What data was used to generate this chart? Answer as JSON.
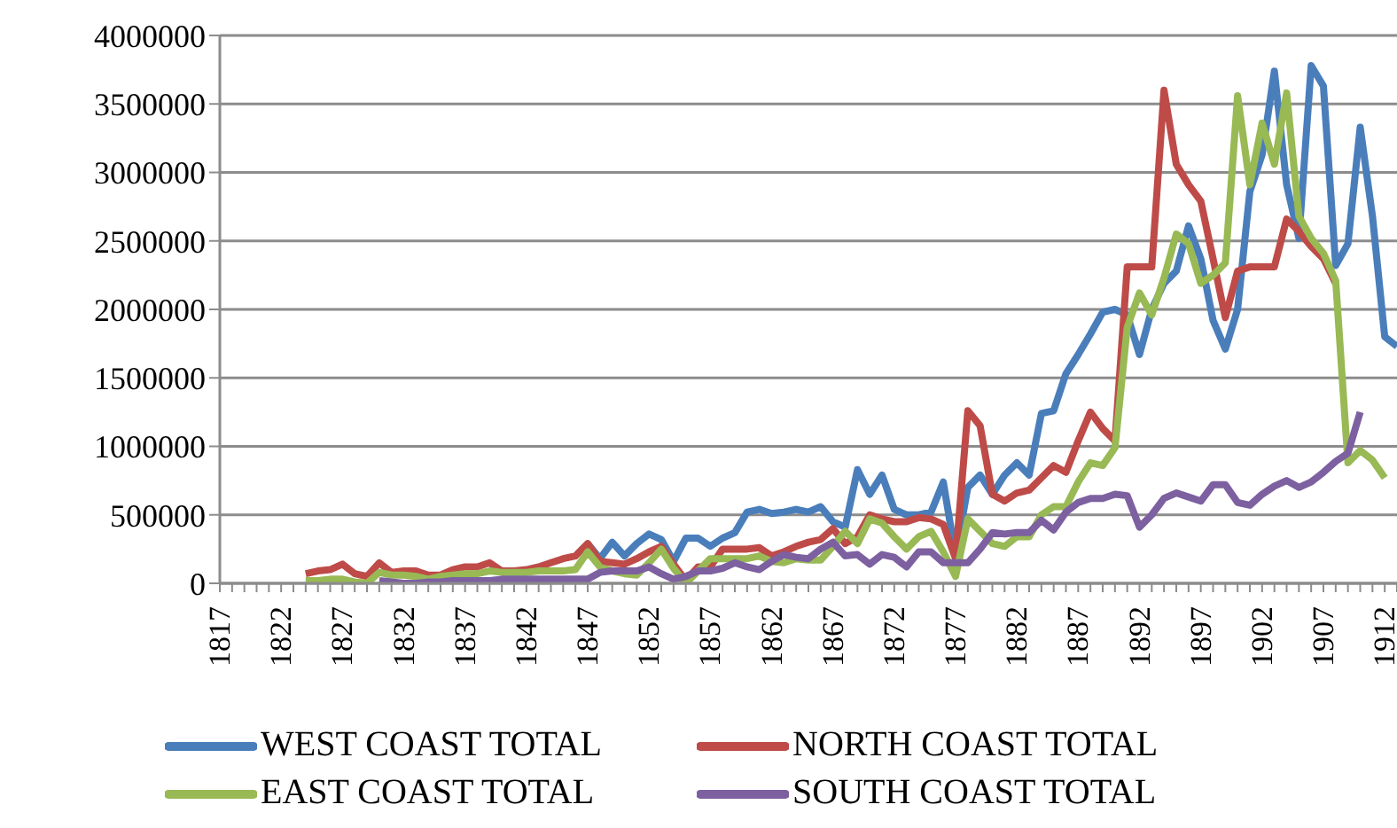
{
  "chart_data": {
    "type": "line",
    "categories": [
      "1817",
      null,
      null,
      null,
      null,
      "1822",
      null,
      null,
      null,
      null,
      "1827",
      null,
      null,
      null,
      null,
      "1832",
      null,
      null,
      null,
      null,
      "1837",
      null,
      null,
      null,
      null,
      "1842",
      null,
      null,
      null,
      null,
      "1847",
      null,
      null,
      null,
      null,
      "1852",
      null,
      null,
      null,
      null,
      "1857",
      null,
      null,
      null,
      null,
      "1862",
      null,
      null,
      null,
      null,
      "1867",
      null,
      null,
      null,
      null,
      "1872",
      null,
      null,
      null,
      null,
      "1877",
      null,
      null,
      null,
      null,
      "1882",
      null,
      null,
      null,
      null,
      "1887",
      null,
      null,
      null,
      null,
      "1892",
      null,
      null,
      null,
      null,
      "1897",
      null,
      null,
      null,
      null,
      "1902",
      null,
      null,
      null,
      null,
      "1907",
      null,
      null,
      null,
      null,
      "1912",
      null
    ],
    "series": [
      {
        "name": "WEST COAST TOTAL",
        "color": "#4a7ebb",
        "values": [
          null,
          null,
          null,
          null,
          null,
          null,
          null,
          null,
          null,
          null,
          null,
          null,
          null,
          null,
          null,
          null,
          null,
          null,
          null,
          null,
          null,
          null,
          null,
          null,
          null,
          null,
          null,
          null,
          null,
          null,
          290000,
          180000,
          300000,
          200000,
          290000,
          360000,
          320000,
          160000,
          330000,
          330000,
          270000,
          330000,
          370000,
          520000,
          540000,
          510000,
          520000,
          540000,
          520000,
          560000,
          450000,
          410000,
          830000,
          650000,
          790000,
          540000,
          500000,
          500000,
          520000,
          740000,
          200000,
          700000,
          790000,
          650000,
          790000,
          880000,
          790000,
          1240000,
          1260000,
          1530000,
          1670000,
          1820000,
          1980000,
          2000000,
          1960000,
          1670000,
          2000000,
          2190000,
          2280000,
          2610000,
          2370000,
          1920000,
          1710000,
          2000000,
          2860000,
          3130000,
          3740000,
          2910000,
          2520000,
          3780000,
          3630000,
          2320000,
          2480000,
          3330000,
          2680000,
          1800000,
          1730000
        ]
      },
      {
        "name": "NORTH COAST TOTAL",
        "color": "#be4b48",
        "values": [
          null,
          null,
          null,
          null,
          null,
          null,
          null,
          70000,
          90000,
          100000,
          140000,
          70000,
          50000,
          150000,
          80000,
          90000,
          90000,
          60000,
          60000,
          100000,
          120000,
          120000,
          150000,
          90000,
          90000,
          100000,
          120000,
          150000,
          180000,
          200000,
          290000,
          160000,
          150000,
          140000,
          180000,
          230000,
          270000,
          140000,
          20000,
          120000,
          120000,
          250000,
          250000,
          250000,
          260000,
          200000,
          230000,
          270000,
          300000,
          320000,
          400000,
          290000,
          340000,
          500000,
          470000,
          450000,
          450000,
          480000,
          470000,
          430000,
          180000,
          1260000,
          1150000,
          650000,
          600000,
          660000,
          680000,
          770000,
          860000,
          810000,
          1040000,
          1250000,
          1130000,
          1040000,
          2310000,
          2310000,
          2310000,
          3600000,
          3060000,
          2910000,
          2790000,
          2370000,
          1940000,
          2280000,
          2310000,
          2310000,
          2310000,
          2660000,
          2570000,
          2460000,
          2370000,
          2190000,
          null,
          null,
          null,
          null,
          null
        ]
      },
      {
        "name": "EAST COAST TOTAL",
        "color": "#98b954",
        "values": [
          null,
          null,
          null,
          null,
          null,
          null,
          null,
          20000,
          20000,
          30000,
          30000,
          10000,
          0,
          80000,
          60000,
          60000,
          50000,
          30000,
          50000,
          60000,
          70000,
          70000,
          90000,
          80000,
          80000,
          80000,
          90000,
          90000,
          90000,
          100000,
          230000,
          120000,
          90000,
          70000,
          60000,
          150000,
          250000,
          110000,
          0,
          90000,
          180000,
          180000,
          180000,
          180000,
          200000,
          160000,
          150000,
          180000,
          170000,
          170000,
          270000,
          380000,
          290000,
          470000,
          440000,
          340000,
          250000,
          340000,
          380000,
          230000,
          50000,
          470000,
          380000,
          290000,
          270000,
          340000,
          340000,
          500000,
          560000,
          560000,
          740000,
          880000,
          860000,
          990000,
          1870000,
          2120000,
          1960000,
          2230000,
          2550000,
          2480000,
          2190000,
          2250000,
          2340000,
          3560000,
          2910000,
          3360000,
          3060000,
          3580000,
          2680000,
          2520000,
          2410000,
          2210000,
          880000,
          970000,
          900000,
          770000,
          null
        ]
      },
      {
        "name": "SOUTH COAST TOTAL",
        "color": "#7d60a0",
        "values": [
          null,
          null,
          null,
          null,
          null,
          null,
          null,
          null,
          null,
          null,
          null,
          null,
          null,
          20000,
          10000,
          0,
          0,
          10000,
          10000,
          20000,
          20000,
          20000,
          20000,
          30000,
          30000,
          30000,
          30000,
          30000,
          30000,
          30000,
          30000,
          80000,
          90000,
          90000,
          90000,
          120000,
          70000,
          30000,
          50000,
          90000,
          90000,
          110000,
          150000,
          120000,
          100000,
          160000,
          210000,
          190000,
          180000,
          250000,
          300000,
          200000,
          210000,
          140000,
          210000,
          190000,
          120000,
          230000,
          230000,
          150000,
          150000,
          150000,
          250000,
          370000,
          360000,
          370000,
          370000,
          460000,
          390000,
          520000,
          590000,
          620000,
          620000,
          650000,
          640000,
          410000,
          500000,
          620000,
          660000,
          630000,
          600000,
          720000,
          720000,
          590000,
          570000,
          650000,
          710000,
          750000,
          700000,
          740000,
          810000,
          890000,
          950000,
          1250000,
          null,
          null,
          null
        ]
      }
    ],
    "ylim": [
      0,
      4000000
    ],
    "yticks": [
      0,
      500000,
      1000000,
      1500000,
      2000000,
      2500000,
      3000000,
      3500000,
      4000000
    ],
    "grid": "y",
    "legend": "bottom",
    "marker": "none",
    "line_style": "solid"
  }
}
